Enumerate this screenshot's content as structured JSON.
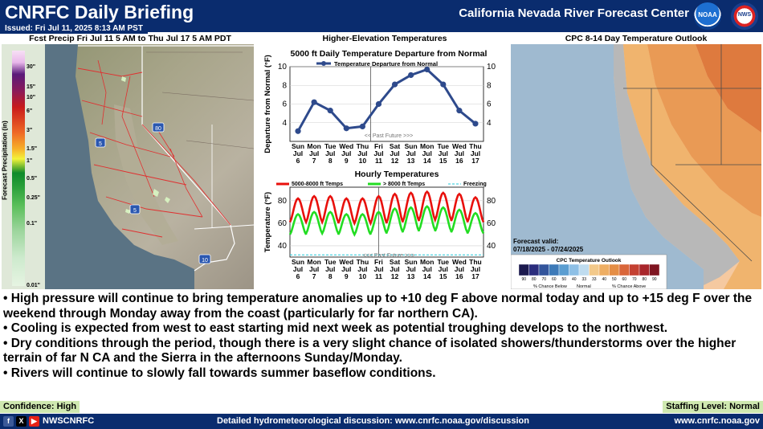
{
  "header": {
    "title": "CNRFC Daily Briefing",
    "center_name": "California Nevada River Forecast Center",
    "issued": "Issued: Fri Jul 11, 2025 8:13 AM PST",
    "noaa_logo_text": "NOAA",
    "nws_logo_text": "NWS"
  },
  "panels": {
    "precip": {
      "title": "Fcst Precip Fri Jul 11 5 AM to Thu Jul 17 5 AM PDT",
      "legend_label": "Forecast Precipitation (in)",
      "legend_ticks": [
        "30\"",
        "15\"",
        "10\"",
        "6\"",
        "3\"",
        "1.5\"",
        "1\"",
        "0.5\"",
        "0.25\"",
        "0.1\"",
        "0.01\""
      ],
      "highway_shields": [
        "80",
        "5",
        "5",
        "10"
      ]
    },
    "temps": {
      "title": "Higher-Elevation Temperatures"
    },
    "outlook": {
      "title": "CPC 8-14 Day Temperature Outlook",
      "valid_label": "Forecast valid:",
      "valid_dates": "07/18/2025 - 07/24/2025",
      "legend_title": "CPC Temperature Outlook",
      "legend_ticks": [
        "90",
        "80",
        "70",
        "60",
        "50",
        "40",
        "33",
        "33",
        "40",
        "50",
        "60",
        "70",
        "80",
        "90"
      ],
      "legend_colors": [
        "#1c1a4e",
        "#2b2d7d",
        "#33559c",
        "#3d7ab8",
        "#5b9ed1",
        "#8ec0e6",
        "#bfdcef",
        "#f3c98a",
        "#eeae63",
        "#e58e45",
        "#d9663a",
        "#c44132",
        "#a8262b",
        "#7f1521"
      ],
      "legend_below": "% Chance Below",
      "legend_normal": "Normal",
      "legend_above": "% Chance Above"
    }
  },
  "chart_data": [
    {
      "type": "line",
      "title": "5000 ft Daily Temperature Departure from Normal",
      "ylabel": "Departure from Normal (°F)",
      "ylim": [
        2,
        10
      ],
      "yticks": [
        4,
        6,
        8,
        10
      ],
      "legend": "Temperature Departure from Normal",
      "past_future_label": "<< Past  Future >>>",
      "x_days": [
        "Sun",
        "Mon",
        "Tue",
        "Wed",
        "Thu",
        "Fri",
        "Sat",
        "Sun",
        "Mon",
        "Tue",
        "Wed",
        "Thu"
      ],
      "x_months": [
        "Jul",
        "Jul",
        "Jul",
        "Jul",
        "Jul",
        "Jul",
        "Jul",
        "Jul",
        "Jul",
        "Jul",
        "Jul",
        "Jul"
      ],
      "x_dates": [
        "6",
        "7",
        "8",
        "9",
        "10",
        "11",
        "12",
        "13",
        "14",
        "15",
        "16",
        "17"
      ],
      "series": [
        {
          "name": "Temperature Departure from Normal",
          "color": "#2e4a8c",
          "values": [
            3.1,
            6.2,
            5.3,
            3.4,
            3.6,
            6.0,
            8.1,
            9.1,
            9.7,
            8.1,
            5.3,
            3.9
          ]
        }
      ],
      "divider_index": 4.5
    },
    {
      "type": "line",
      "title": "Hourly Temperatures",
      "ylabel": "Temperature (°F)",
      "ylim": [
        30,
        92
      ],
      "yticks": [
        40,
        60,
        80
      ],
      "past_future_label": "<<< Past  Future >>>",
      "x_days": [
        "Sun",
        "Mon",
        "Tue",
        "Wed",
        "Thu",
        "Fri",
        "Sat",
        "Sun",
        "Mon",
        "Tue",
        "Wed",
        "Thu"
      ],
      "x_months": [
        "Jul",
        "Jul",
        "Jul",
        "Jul",
        "Jul",
        "Jul",
        "Jul",
        "Jul",
        "Jul",
        "Jul",
        "Jul",
        "Jul"
      ],
      "x_dates": [
        "6",
        "7",
        "8",
        "9",
        "10",
        "11",
        "12",
        "13",
        "14",
        "15",
        "16",
        "17"
      ],
      "series": [
        {
          "name": "5000-8000 ft Temps",
          "color": "#e8100c",
          "daily_min": [
            61,
            61,
            61,
            60,
            60,
            60,
            61,
            62,
            63,
            63,
            62,
            61
          ],
          "daily_max": [
            82,
            84,
            84,
            82,
            82,
            84,
            86,
            87,
            88,
            87,
            86,
            83
          ]
        },
        {
          "name": "> 8000 ft Temps",
          "color": "#22dd22",
          "daily_min": [
            50,
            51,
            51,
            50,
            50,
            51,
            52,
            53,
            54,
            53,
            52,
            51
          ],
          "daily_max": [
            68,
            70,
            70,
            68,
            68,
            70,
            73,
            74,
            75,
            74,
            72,
            69
          ]
        },
        {
          "name": "Freezing",
          "color": "#22c8d8",
          "value": 32
        }
      ],
      "divider_index": 5
    }
  ],
  "bullets": [
    "• High pressure will continue to bring temperature anomalies up to +10 deg F above normal today and up to +15 deg F over the weekend through Monday away from the coast (particularly for far northern CA).",
    "• Cooling is expected from west to east starting mid next week as potential troughing develops to the northwest.",
    "• Dry conditions through the period, though there is a very slight chance of isolated showers/thunderstorms over the higher terrain of far N CA and the Sierra in the afternoons Sunday/Monday.",
    "• Rivers will continue to slowly fall towards summer baseflow conditions."
  ],
  "status": {
    "confidence": "Confidence: High",
    "staffing": "Staffing Level: Normal"
  },
  "footer": {
    "handle": "NWSCNRFC",
    "discussion": "Detailed hydrometeorological discussion: www.cnrfc.noaa.gov/discussion",
    "website": "www.cnrfc.noaa.gov",
    "social_icons": [
      "facebook-icon",
      "x-icon",
      "youtube-icon"
    ]
  },
  "colors": {
    "banner": "#0a2c6e",
    "badge": "#cfe8b0"
  }
}
